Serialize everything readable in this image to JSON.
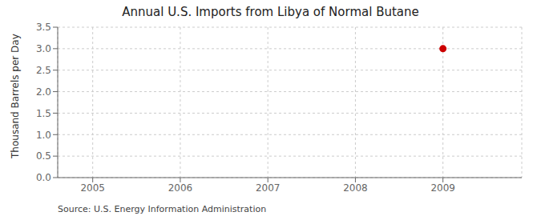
{
  "chart_data": {
    "type": "scatter",
    "title": "Annual U.S. Imports from Libya of Normal Butane",
    "y_label": "Thousand Barrels per Day",
    "annotations": [
      "Source: U.S. Energy Information Administration"
    ],
    "x": [
      2009
    ],
    "values": [
      3.0
    ],
    "color": "#CC0000",
    "marker": "circle",
    "xlim": [
      2004.6,
      2009.9
    ],
    "xticks": [
      2005,
      2006,
      2007,
      2008,
      2009
    ],
    "ylim": [
      0.0,
      3.5
    ],
    "yticks": [
      {
        "value": 0.0,
        "label": "0.0"
      },
      0.5,
      {
        "value": 1.0,
        "label": "1.0"
      },
      1.5,
      {
        "value": 2.0,
        "label": "2.0"
      },
      2.5,
      {
        "value": 3.0,
        "label": "3.0"
      },
      3.5
    ],
    "grid": true
  }
}
